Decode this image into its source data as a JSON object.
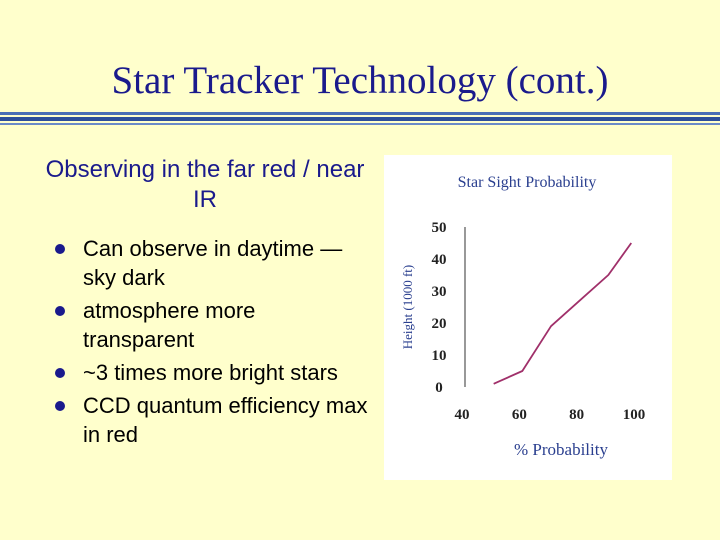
{
  "slide": {
    "title": "Star Tracker Technology (cont.)",
    "subtitle": "Observing in the far red / near IR",
    "bullets": [
      "Can observe in daytime — sky dark",
      "atmosphere more transparent",
      "~3 times more bright stars",
      "CCD quantum efficiency max in red"
    ],
    "colors": {
      "background": "#ffffcc",
      "title": "#1a1a8c",
      "chart_title": "#2a3f8f",
      "series_line": "#a0306a"
    }
  },
  "chart_data": {
    "type": "line",
    "title": "Star Sight Probability",
    "xlabel": "% Probability",
    "ylabel": "Height (1000 ft)",
    "xlim": [
      40,
      100
    ],
    "ylim": [
      0,
      50
    ],
    "xticks": [
      "40",
      "60",
      "80",
      "100"
    ],
    "yticks": [
      "0",
      "10",
      "20",
      "30",
      "40",
      "50"
    ],
    "grid": false,
    "series": [
      {
        "x": [
          50,
          60,
          70,
          80,
          90,
          98
        ],
        "y": [
          1,
          5,
          19,
          27,
          35,
          45
        ]
      }
    ]
  }
}
